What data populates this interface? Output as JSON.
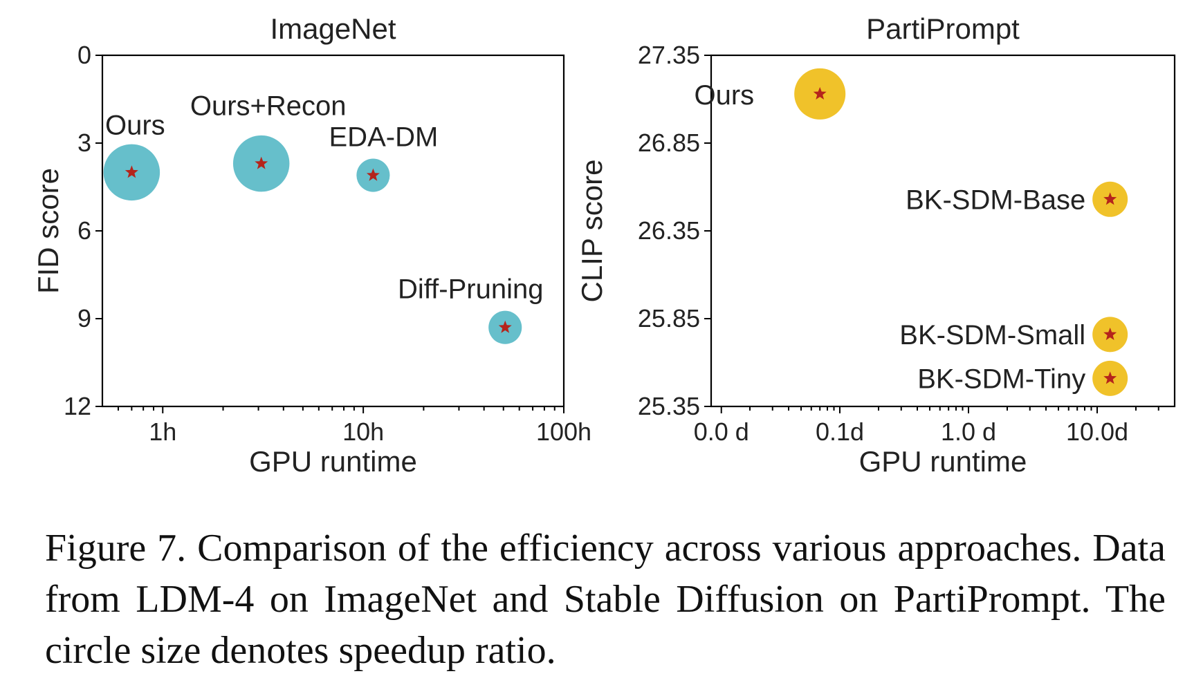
{
  "chart_data": [
    {
      "type": "scatter",
      "title": "ImageNet",
      "xlabel": "GPU runtime",
      "ylabel": "FID score",
      "x_scale": "log",
      "xlim": [
        0.5,
        100
      ],
      "ylim": [
        12,
        0
      ],
      "y_inverted": true,
      "xticks": [
        1,
        10,
        100
      ],
      "xtick_labels": [
        "1h",
        "10h",
        "100h"
      ],
      "yticks": [
        0,
        3,
        6,
        9,
        12
      ],
      "ytick_labels": [
        "0",
        "3",
        "6",
        "9",
        "12"
      ],
      "marker_color": "#66bfcb",
      "star_color": "#b5241b",
      "grid": false,
      "points": [
        {
          "label": "Ours",
          "x": 0.7,
          "y": 4.0,
          "size": 4.6,
          "highlight": true
        },
        {
          "label": "Ours+Recon",
          "x": 3.1,
          "y": 3.7,
          "size": 4.6,
          "highlight": false
        },
        {
          "label": "EDA-DM",
          "x": 11.2,
          "y": 4.1,
          "size": 1.6,
          "highlight": false
        },
        {
          "label": "Diff-Pruning",
          "x": 51,
          "y": 9.3,
          "size": 1.6,
          "highlight": false
        }
      ]
    },
    {
      "type": "scatter",
      "title": "PartiPrompt",
      "xlabel": "GPU runtime",
      "ylabel": "CLIP score",
      "x_scale": "log",
      "xlim": [
        0.01,
        40
      ],
      "ylim": [
        25.35,
        27.35
      ],
      "xticks": [
        0.012,
        0.1,
        1.0,
        10.0
      ],
      "xtick_labels": [
        "0.0 d",
        "0.1d",
        "1.0 d",
        "10.0d"
      ],
      "yticks": [
        27.35,
        26.85,
        26.35,
        25.85,
        25.35
      ],
      "ytick_labels": [
        "27.35",
        "26.85",
        "26.35",
        "25.85",
        "25.35"
      ],
      "marker_color": "#f0c22a",
      "star_color": "#b5241b",
      "grid": false,
      "points": [
        {
          "label": "Ours",
          "x": 0.07,
          "y": 27.13,
          "size": 3.8,
          "highlight": true
        },
        {
          "label": "BK-SDM-Base",
          "x": 12.6,
          "y": 26.53,
          "size": 1.8,
          "highlight": false
        },
        {
          "label": "BK-SDM-Small",
          "x": 12.6,
          "y": 25.76,
          "size": 1.8,
          "highlight": false
        },
        {
          "label": "BK-SDM-Tiny",
          "x": 12.6,
          "y": 25.51,
          "size": 1.8,
          "highlight": false
        }
      ]
    }
  ],
  "caption": "Figure 7. Comparison of the efficiency across various approaches. Data from LDM-4 on ImageNet and Stable Diffusion on PartiPrompt. The circle size denotes speedup ratio.",
  "colors": {
    "highlight_label": "#e8191e",
    "default_label": "#222222"
  }
}
